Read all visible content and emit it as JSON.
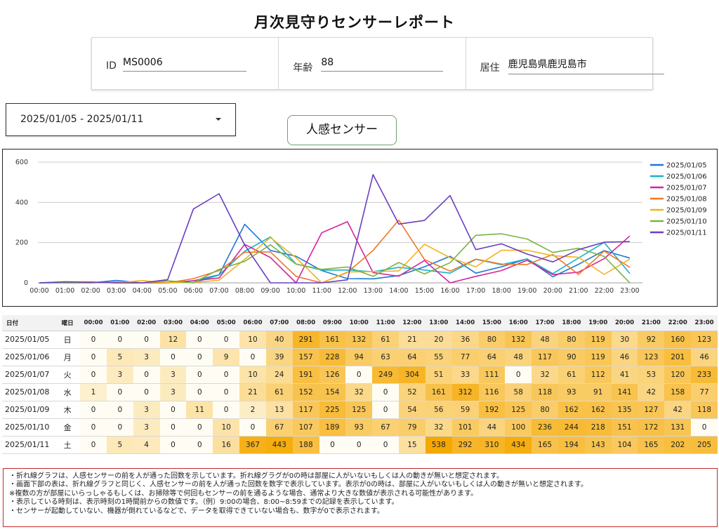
{
  "title": "月次見守りセンサーレポート",
  "profile": {
    "id_label": "ID",
    "id_value": "MS0006",
    "age_label": "年齢",
    "age_value": "88",
    "residence_label": "居住",
    "residence_value": "鹿児島県鹿児島市"
  },
  "date_range": {
    "value": "2025/01/05 - 2025/01/11"
  },
  "sensor_button": {
    "label": "人感センサー"
  },
  "table": {
    "header_date": "日付",
    "header_day": "曜日",
    "hours": [
      "00:00",
      "01:00",
      "02:00",
      "03:00",
      "04:00",
      "05:00",
      "06:00",
      "07:00",
      "08:00",
      "09:00",
      "10:00",
      "11:00",
      "12:00",
      "13:00",
      "14:00",
      "15:00",
      "16:00",
      "17:00",
      "18:00",
      "19:00",
      "20:00",
      "21:00",
      "22:00",
      "23:00"
    ]
  },
  "colors": {
    "heat_max": "#f5a800",
    "heat_min": "#fffdf3",
    "grid": "#cccccc",
    "note_border": "#c62828"
  },
  "chart_data": {
    "type": "line",
    "x": [
      "00:00",
      "01:00",
      "02:00",
      "03:00",
      "04:00",
      "05:00",
      "06:00",
      "07:00",
      "08:00",
      "09:00",
      "10:00",
      "11:00",
      "12:00",
      "13:00",
      "14:00",
      "15:00",
      "16:00",
      "17:00",
      "18:00",
      "19:00",
      "20:00",
      "21:00",
      "22:00",
      "23:00"
    ],
    "ylim": [
      0,
      600
    ],
    "yticks": [
      0,
      200,
      400,
      600
    ],
    "grid": true,
    "legend_position": "right",
    "series": [
      {
        "name": "2025/01/05",
        "day": "日",
        "color": "#1f77d4",
        "values": [
          0,
          0,
          0,
          12,
          0,
          0,
          10,
          40,
          291,
          161,
          132,
          61,
          21,
          20,
          36,
          80,
          132,
          48,
          80,
          119,
          30,
          92,
          160,
          123
        ]
      },
      {
        "name": "2025/01/06",
        "day": "月",
        "color": "#17b3c9",
        "values": [
          0,
          5,
          3,
          0,
          0,
          9,
          0,
          39,
          157,
          228,
          94,
          63,
          64,
          55,
          77,
          64,
          48,
          117,
          90,
          119,
          46,
          123,
          201,
          46
        ]
      },
      {
        "name": "2025/01/07",
        "day": "火",
        "color": "#d6249f",
        "values": [
          0,
          3,
          0,
          3,
          0,
          0,
          10,
          24,
          191,
          126,
          0,
          249,
          304,
          51,
          33,
          111,
          0,
          32,
          61,
          112,
          41,
          53,
          120,
          233
        ]
      },
      {
        "name": "2025/01/08",
        "day": "水",
        "color": "#f0782a",
        "values": [
          1,
          0,
          0,
          3,
          0,
          0,
          21,
          61,
          152,
          154,
          32,
          0,
          52,
          161,
          312,
          116,
          58,
          118,
          93,
          91,
          141,
          42,
          158,
          77
        ]
      },
      {
        "name": "2025/01/09",
        "day": "木",
        "color": "#f2b320",
        "values": [
          0,
          0,
          3,
          0,
          11,
          0,
          2,
          13,
          117,
          225,
          125,
          0,
          54,
          56,
          59,
          192,
          125,
          80,
          162,
          162,
          135,
          127,
          42,
          118
        ]
      },
      {
        "name": "2025/01/10",
        "day": "金",
        "color": "#7cb342",
        "values": [
          0,
          0,
          3,
          0,
          0,
          10,
          0,
          67,
          107,
          189,
          93,
          67,
          79,
          32,
          101,
          44,
          100,
          236,
          244,
          218,
          151,
          172,
          131,
          0
        ]
      },
      {
        "name": "2025/01/11",
        "day": "土",
        "color": "#6a3fc1",
        "values": [
          0,
          5,
          4,
          0,
          0,
          16,
          367,
          443,
          188,
          0,
          0,
          0,
          15,
          538,
          292,
          310,
          434,
          165,
          194,
          143,
          104,
          165,
          202,
          205
        ]
      }
    ]
  },
  "notes": [
    "・折れ線グラフは、人感センサーの前を人が通った回数を示しています。折れ線グラグが0の時は部屋に人がいないもしくは人の動きが無いと想定されます。",
    "・画面下部の表は、折れ線グラフと同じく、人感センサーの前を人が通った回数を数字で表示しています。表示が0の時は、部屋に人がいないもしくは人の動きが無いと想定されます。",
    "※複数の方が部屋にいらっしゃるもしくは、お掃除等で何回もセンサーの前を通るような場合、通常より大きな数値が表示される可能性があります。",
    "・表示している時刻は、表示時刻の1時間前からの数値です。（例）9:00の場合、8:00~8:59までの記録を表示しています。",
    "・センサーが起動していない、機器が倒れているなどで、データを取得できていない場合も、数字が0で表示されます。"
  ]
}
